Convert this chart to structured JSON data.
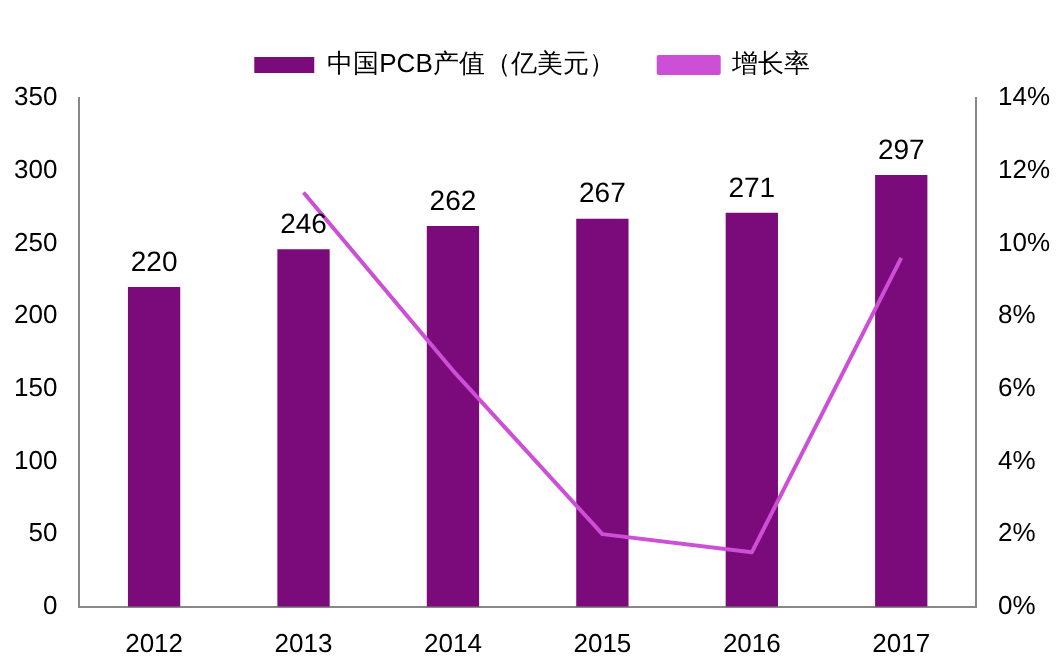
{
  "chart_data": {
    "type": "bar",
    "categories": [
      "2012",
      "2013",
      "2014",
      "2015",
      "2016",
      "2017"
    ],
    "series": [
      {
        "name": "中国PCB产值（亿美元）",
        "color": "#7b0a7b",
        "values": [
          220,
          246,
          262,
          267,
          271,
          297
        ],
        "value_labels": [
          "220",
          "246",
          "262",
          "267",
          "271",
          "297"
        ]
      },
      {
        "name": "增长率",
        "type": "line",
        "axis": "y2",
        "color": "#cc4fd6",
        "values": [
          null,
          11.4,
          6.5,
          2.0,
          1.5,
          9.6
        ]
      }
    ],
    "ylim": [
      0,
      350
    ],
    "yticks": [
      0,
      50,
      100,
      150,
      200,
      250,
      300,
      350
    ],
    "y2lim": [
      0,
      14
    ],
    "y2ticks": [
      {
        "value": 0,
        "label": "0%"
      },
      {
        "value": 2,
        "label": "2%"
      },
      {
        "value": 4,
        "label": "4%"
      },
      {
        "value": 6,
        "label": "6%"
      },
      {
        "value": 8,
        "label": "8%"
      },
      {
        "value": 10,
        "label": "10%"
      },
      {
        "value": 12,
        "label": "12%"
      },
      {
        "value": 14,
        "label": "14%"
      }
    ],
    "legend": "top",
    "grid": false,
    "marker": "none"
  }
}
